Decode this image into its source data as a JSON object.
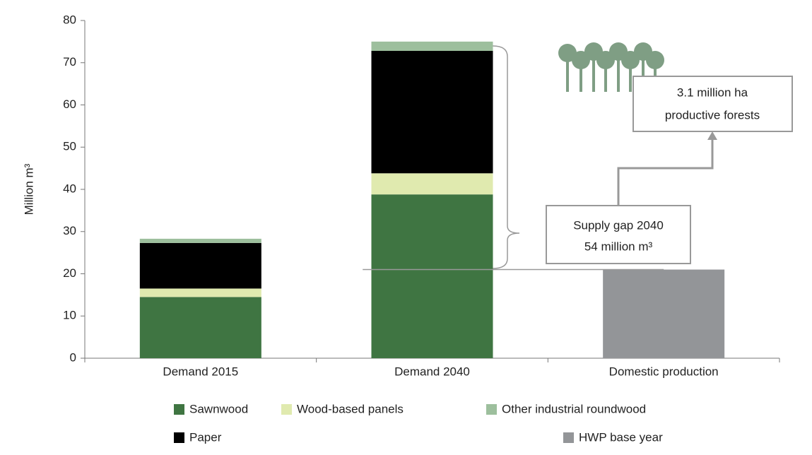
{
  "chart_data": {
    "type": "stacked_bar",
    "y_label": "Million m³",
    "categories": [
      "Demand 2015",
      "Demand 2040",
      "Domestic production"
    ],
    "series": [
      {
        "name": "Sawnwood",
        "color": "#3f7542",
        "values": [
          14.5,
          38.8,
          null
        ]
      },
      {
        "name": "Wood-based panels",
        "color": "#e0eaaf",
        "values": [
          2.0,
          5.0,
          null
        ]
      },
      {
        "name": "Paper",
        "color": "#000000",
        "values": [
          10.8,
          29.0,
          null
        ]
      },
      {
        "name": "Other industrial roundwood",
        "color": "#9dbf9d",
        "values": [
          1.0,
          2.2,
          null
        ]
      },
      {
        "name": "HWP base year",
        "color": "#939598",
        "values": [
          null,
          null,
          21
        ]
      }
    ],
    "ylim": [
      0,
      80
    ],
    "yticks": [
      0,
      10,
      20,
      30,
      40,
      50,
      60,
      70,
      80
    ],
    "annotations": {
      "supply_gap": [
        "Supply gap 2040",
        "54 million m³"
      ],
      "forests": [
        "3.1 million ha",
        "productive forests"
      ]
    }
  }
}
